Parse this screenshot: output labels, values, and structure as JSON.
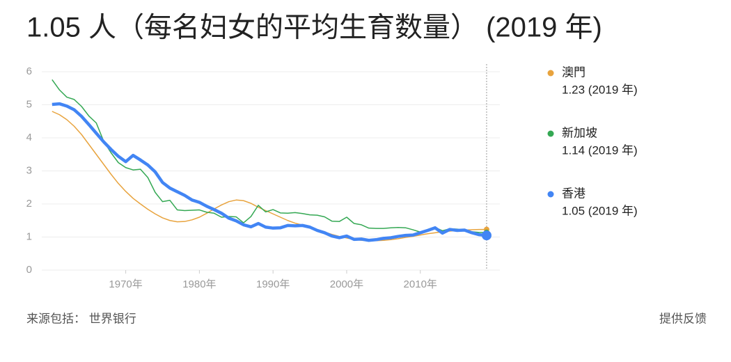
{
  "chart_data": {
    "type": "line",
    "title": "1.05 人（每名妇女的平均生育数量） (2019 年)",
    "x": [
      1960,
      1961,
      1962,
      1963,
      1964,
      1965,
      1966,
      1967,
      1968,
      1969,
      1970,
      1971,
      1972,
      1973,
      1974,
      1975,
      1976,
      1977,
      1978,
      1979,
      1980,
      1981,
      1982,
      1983,
      1984,
      1985,
      1986,
      1987,
      1988,
      1989,
      1990,
      1991,
      1992,
      1993,
      1994,
      1995,
      1996,
      1997,
      1998,
      1999,
      2000,
      2001,
      2002,
      2003,
      2004,
      2005,
      2006,
      2007,
      2008,
      2009,
      2010,
      2011,
      2012,
      2013,
      2014,
      2015,
      2016,
      2017,
      2018,
      2019
    ],
    "series": [
      {
        "name": "澳門",
        "color": "#e8a33d",
        "latest_label": "1.23 (2019 年)",
        "values": [
          4.8,
          4.7,
          4.55,
          4.35,
          4.1,
          3.8,
          3.5,
          3.2,
          2.9,
          2.62,
          2.38,
          2.17,
          2.0,
          1.84,
          1.7,
          1.58,
          1.5,
          1.46,
          1.47,
          1.52,
          1.6,
          1.72,
          1.85,
          1.97,
          2.07,
          2.12,
          2.1,
          2.02,
          1.9,
          1.8,
          1.7,
          1.6,
          1.5,
          1.42,
          1.36,
          1.3,
          1.22,
          1.15,
          1.08,
          1.02,
          0.97,
          0.93,
          0.9,
          0.89,
          0.89,
          0.9,
          0.92,
          0.95,
          0.99,
          1.02,
          1.06,
          1.1,
          1.13,
          1.16,
          1.18,
          1.2,
          1.21,
          1.22,
          1.23,
          1.23
        ]
      },
      {
        "name": "新加坡",
        "color": "#34a853",
        "latest_label": "1.14 (2019 年)",
        "values": [
          5.76,
          5.45,
          5.23,
          5.16,
          4.95,
          4.66,
          4.45,
          3.9,
          3.55,
          3.25,
          3.1,
          3.03,
          3.05,
          2.8,
          2.35,
          2.07,
          2.11,
          1.82,
          1.8,
          1.81,
          1.82,
          1.75,
          1.72,
          1.6,
          1.62,
          1.61,
          1.43,
          1.62,
          1.96,
          1.76,
          1.83,
          1.73,
          1.72,
          1.74,
          1.71,
          1.67,
          1.66,
          1.61,
          1.48,
          1.47,
          1.6,
          1.41,
          1.37,
          1.27,
          1.26,
          1.26,
          1.28,
          1.29,
          1.28,
          1.22,
          1.15,
          1.2,
          1.29,
          1.19,
          1.25,
          1.24,
          1.2,
          1.16,
          1.14,
          1.14
        ]
      },
      {
        "name": "香港",
        "color": "#4285f4",
        "latest_label": "1.05 (2019 年)",
        "values": [
          5.01,
          5.03,
          4.96,
          4.85,
          4.65,
          4.4,
          4.14,
          3.88,
          3.65,
          3.44,
          3.28,
          3.47,
          3.33,
          3.18,
          2.97,
          2.65,
          2.48,
          2.37,
          2.26,
          2.12,
          2.05,
          1.93,
          1.83,
          1.72,
          1.57,
          1.49,
          1.37,
          1.31,
          1.41,
          1.3,
          1.27,
          1.28,
          1.35,
          1.34,
          1.35,
          1.3,
          1.2,
          1.13,
          1.03,
          0.98,
          1.03,
          0.93,
          0.94,
          0.9,
          0.92,
          0.96,
          0.98,
          1.02,
          1.05,
          1.06,
          1.13,
          1.2,
          1.28,
          1.12,
          1.23,
          1.2,
          1.21,
          1.13,
          1.07,
          1.05
        ]
      }
    ],
    "xlim": [
      1958.6,
      2020.8
    ],
    "xticks": [
      {
        "value": 1970,
        "label": "1970年"
      },
      {
        "value": 1980,
        "label": "1980年"
      },
      {
        "value": 1990,
        "label": "1990年"
      },
      {
        "value": 2000,
        "label": "2000年"
      },
      {
        "value": 2010,
        "label": "2010年"
      }
    ],
    "ylim": [
      0,
      6
    ],
    "yticks": [
      0,
      1,
      2,
      3,
      4,
      5,
      6
    ],
    "grid": true
  },
  "footer": {
    "source": "来源包括：  世界银行",
    "feedback": "提供反馈"
  }
}
